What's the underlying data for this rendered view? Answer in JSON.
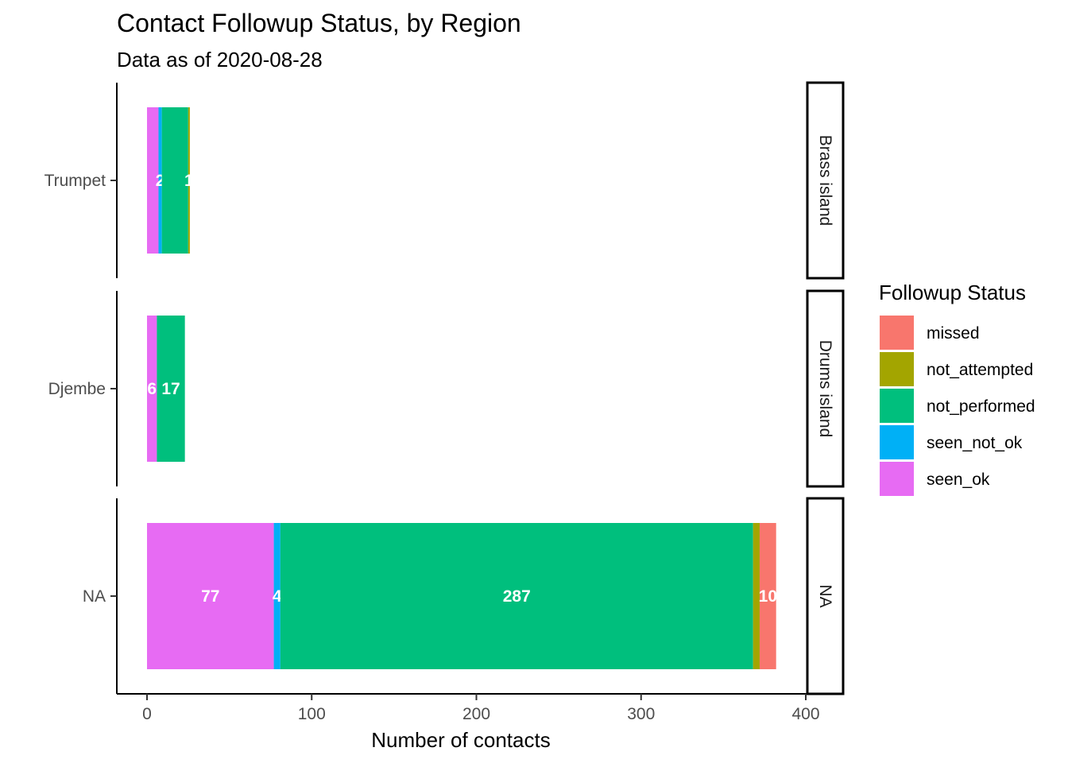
{
  "chart_data": {
    "type": "bar",
    "orientation": "horizontal",
    "stacked": true,
    "title": "Contact Followup Status, by Region",
    "subtitle": "Data as of 2020-08-28",
    "xlabel": "Number of contacts",
    "ylabel": "",
    "xlim": [
      -18,
      421
    ],
    "xticks": [
      0,
      100,
      200,
      300,
      400
    ],
    "grid": false,
    "legend": {
      "title": "Followup Status",
      "placement": "right",
      "entries": [
        "missed",
        "not_attempted",
        "not_performed",
        "seen_not_ok",
        "seen_ok"
      ]
    },
    "colors": {
      "missed": "#F8766D",
      "not_attempted": "#A3A500",
      "not_performed": "#00BF7D",
      "seen_not_ok": "#00B0F6",
      "seen_ok": "#E76BF3"
    },
    "stack_order": [
      "seen_ok",
      "seen_not_ok",
      "not_performed",
      "not_attempted",
      "missed"
    ],
    "facets": [
      {
        "strip": "Brass island",
        "category": "Trumpet",
        "values": {
          "seen_ok": 7,
          "seen_not_ok": 2,
          "not_performed": 16,
          "not_attempted": 1,
          "missed": 0
        },
        "labels": {
          "seen_ok": "",
          "seen_not_ok": "2",
          "not_performed": "",
          "not_attempted": "1",
          "missed": ""
        }
      },
      {
        "strip": "Drums island",
        "category": "Djembe",
        "values": {
          "seen_ok": 6,
          "seen_not_ok": 0,
          "not_performed": 17,
          "not_attempted": 0,
          "missed": 0
        },
        "labels": {
          "seen_ok": "6",
          "seen_not_ok": "",
          "not_performed": "17",
          "not_attempted": "",
          "missed": ""
        }
      },
      {
        "strip": "NA",
        "category": "NA",
        "values": {
          "seen_ok": 77,
          "seen_not_ok": 4,
          "not_performed": 287,
          "not_attempted": 4,
          "missed": 10
        },
        "labels": {
          "seen_ok": "77",
          "seen_not_ok": "4",
          "not_performed": "287",
          "not_attempted": "",
          "missed": "10"
        }
      }
    ]
  }
}
